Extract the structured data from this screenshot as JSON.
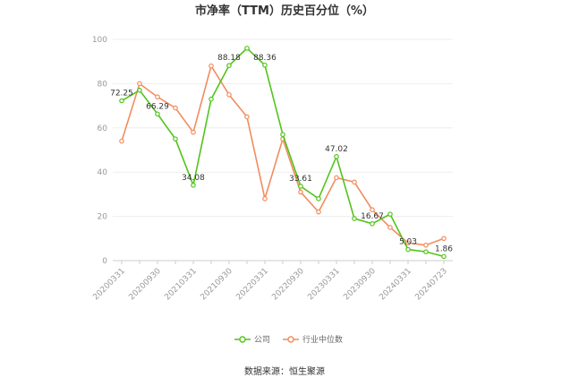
{
  "chart_data": {
    "type": "line",
    "title": "市净率（TTM）历史百分位（%）",
    "source": "数据来源：恒生聚源",
    "ylim": [
      0,
      100
    ],
    "yticks": [
      0,
      20,
      40,
      60,
      80,
      100
    ],
    "x": [
      "20200331",
      "20200630",
      "20200930",
      "20201231",
      "20210331",
      "20210630",
      "20210930",
      "20211231",
      "20220331",
      "20220630",
      "20220930",
      "20221231",
      "20230331",
      "20230630",
      "20230930",
      "20231231",
      "20240331",
      "20240630",
      "20240723"
    ],
    "xtick_labels": [
      "20200331",
      "20200930",
      "20210331",
      "20210930",
      "20220331",
      "20220930",
      "20230331",
      "20230930",
      "20240331",
      "20240723"
    ],
    "grid": true,
    "legend_position": "bottom",
    "series": [
      {
        "name": "公司",
        "color": "#52c41a",
        "values": [
          72.25,
          77,
          66.29,
          55,
          34.08,
          73,
          88.18,
          96,
          88.36,
          57,
          33.61,
          28,
          47.02,
          19,
          16.67,
          21,
          5.03,
          4,
          1.86
        ],
        "labels": {
          "0": "72.25",
          "2": "66.29",
          "4": "34.08",
          "6": "88.18",
          "8": "88.36",
          "10": "33.61",
          "12": "47.02",
          "14": "16.67",
          "16": "5.03",
          "18": "1.86"
        }
      },
      {
        "name": "行业中位数",
        "color": "#f28c5e",
        "values": [
          54,
          80,
          74,
          69,
          58,
          88,
          75,
          65,
          28,
          55,
          31,
          22,
          37.5,
          35.5,
          23,
          15,
          8,
          7,
          10
        ]
      }
    ]
  }
}
